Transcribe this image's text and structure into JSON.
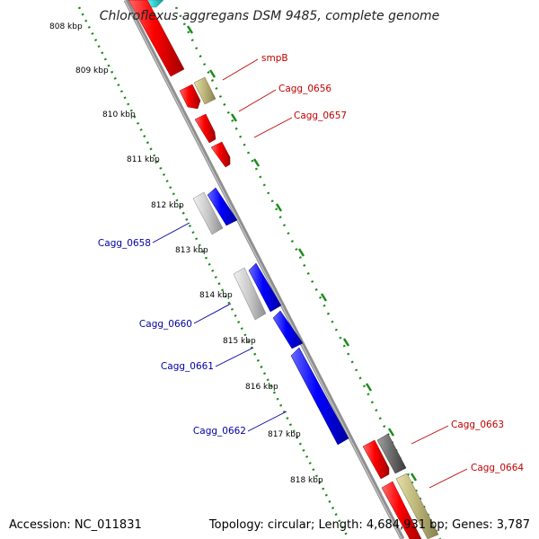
{
  "title": "Chloroflexus aggregans DSM 9485, complete genome",
  "ticks": [
    "808 kbp",
    "809 kbp",
    "810 kbp",
    "811 kbp",
    "812 kbp",
    "813 kbp",
    "814 kbp",
    "815 kbp",
    "816 kbp",
    "817 kbp",
    "818 kbp"
  ],
  "genes": [
    {
      "name": "smpB",
      "color": "#c00000"
    },
    {
      "name": "Cagg_0656",
      "color": "#c00000"
    },
    {
      "name": "Cagg_0657",
      "color": "#c00000"
    },
    {
      "name": "Cagg_0658",
      "color": "#0000a0"
    },
    {
      "name": "Cagg_0660",
      "color": "#0000a0"
    },
    {
      "name": "Cagg_0661",
      "color": "#0000a0"
    },
    {
      "name": "Cagg_0662",
      "color": "#0000a0"
    },
    {
      "name": "Cagg_0663",
      "color": "#c00000"
    },
    {
      "name": "Cagg_0664",
      "color": "#c00000"
    }
  ],
  "footer": {
    "accession": "Accession: NC_011831",
    "summary": "Topology: circular; Length: 4,684,931 bp; Genes: 3,787"
  },
  "colors": {
    "forward_gene": "#ff0000",
    "reverse_gene": "#0000ff",
    "trna": "#bbb477",
    "pseudo_grey": "#c8c8c8",
    "dark_grey": "#6a6a6a",
    "cyan": "#38d8d8",
    "ruler_green": "#1a8a1a",
    "backbone": "#8f8f8f"
  }
}
